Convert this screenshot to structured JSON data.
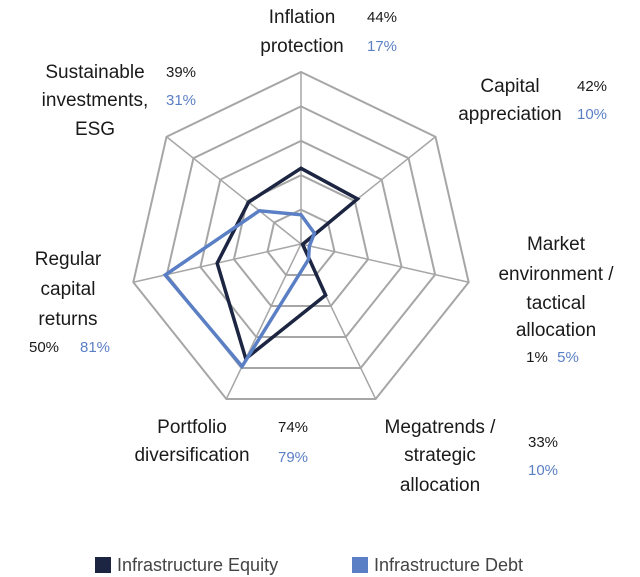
{
  "chart_data": {
    "type": "radar",
    "categories": [
      "Inflation protection",
      "Capital appreciation",
      "Market environment / tactical allocation",
      "Megatrends / strategic allocation",
      "Portfolio diversification",
      "Regular capital returns",
      "Sustainable investments, ESG"
    ],
    "series": [
      {
        "name": "Infrastructure Equity",
        "color": "#1c2541",
        "values": [
          44,
          42,
          1,
          33,
          74,
          50,
          39
        ],
        "value_labels": [
          "44%",
          "42%",
          "1%",
          "33%",
          "74%",
          "50%",
          "39%"
        ]
      },
      {
        "name": "Infrastructure Debt",
        "color": "#5b7fc4",
        "values": [
          17,
          10,
          5,
          10,
          79,
          81,
          31
        ],
        "value_labels": [
          "17%",
          "10%",
          "5%",
          "10%",
          "79%",
          "81%",
          "31%"
        ]
      }
    ],
    "rlim": [
      0,
      100
    ],
    "rticks": [
      20,
      40,
      60,
      80,
      100
    ],
    "grid": true
  }
}
